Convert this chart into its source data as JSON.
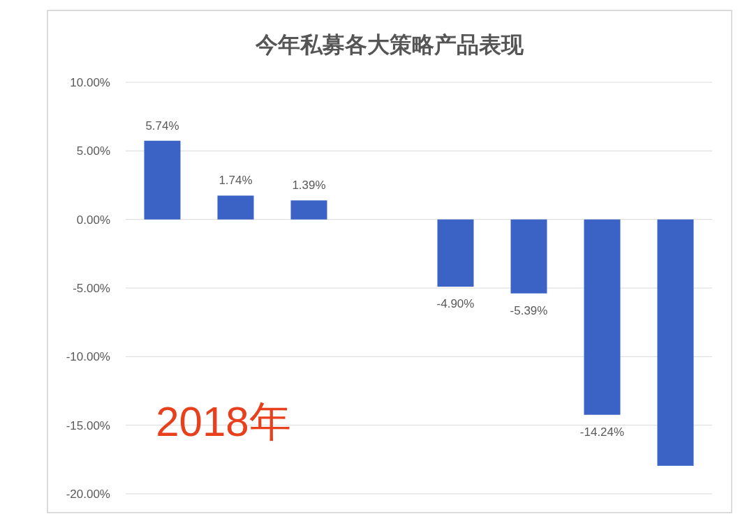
{
  "chart_data": {
    "type": "bar",
    "title": "今年私募各大策略产品表现",
    "categories": [
      null,
      null,
      null,
      null,
      null,
      null,
      null,
      null
    ],
    "values": [
      5.74,
      1.74,
      1.39,
      null,
      -4.9,
      -5.39,
      -14.24,
      -17.96
    ],
    "value_labels": [
      "5.74%",
      "1.74%",
      "1.39%",
      null,
      "-4.90%",
      "-5.39%",
      "-14.24%",
      null
    ],
    "color": "#3b63c6",
    "ylim": [
      -20,
      10
    ],
    "yticks": [
      {
        "value": 10,
        "label": "10.00%"
      },
      {
        "value": 5,
        "label": "5.00%"
      },
      {
        "value": 0,
        "label": "0.00%"
      },
      {
        "value": -5,
        "label": "-5.00%"
      },
      {
        "value": -10,
        "label": "-10.00%"
      },
      {
        "value": -15,
        "label": "-15.00%"
      },
      {
        "value": -20,
        "label": "-20.00%"
      }
    ],
    "grid": "y",
    "annotations": [
      "2018年"
    ]
  }
}
